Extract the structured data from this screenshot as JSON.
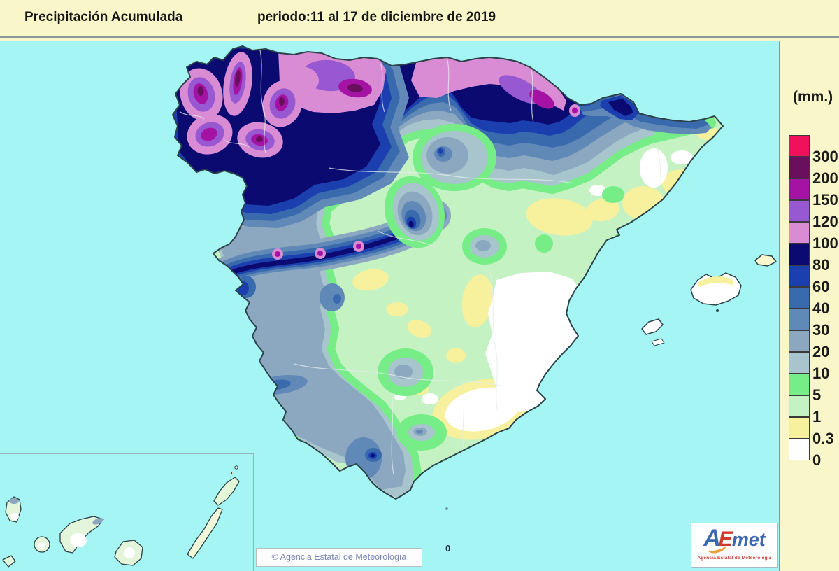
{
  "header": {
    "title": "Precipitación Acumulada",
    "period": "periodo:11 al 17 de diciembre de 2019"
  },
  "legend": {
    "unit": "(mm.)",
    "entries": [
      {
        "label": "300",
        "color": "#F0115C"
      },
      {
        "label": "200",
        "color": "#6A0F5E"
      },
      {
        "label": "150",
        "color": "#A513A5"
      },
      {
        "label": "120",
        "color": "#9758D2"
      },
      {
        "label": "100",
        "color": "#D98CD3"
      },
      {
        "label": "80",
        "color": "#0A0A70"
      },
      {
        "label": "60",
        "color": "#1C3FB0"
      },
      {
        "label": "40",
        "color": "#3A6AAE"
      },
      {
        "label": "30",
        "color": "#6189B8"
      },
      {
        "label": "20",
        "color": "#8CA8C0"
      },
      {
        "label": "10",
        "color": "#A8C4CC"
      },
      {
        "label": "5",
        "color": "#76ED86"
      },
      {
        "label": "1",
        "color": "#C4F2C2"
      },
      {
        "label": "0.3",
        "color": "#F7F09C"
      },
      {
        "label": "0",
        "color": "#FFFFFF"
      }
    ]
  },
  "map": {
    "zero_annotation": "0",
    "attribution": "© Agencia Estatal de Meteorología"
  },
  "logo": {
    "part_a": "A",
    "part_e": "E",
    "part_met": "met",
    "subtitle": "Agencia Estatal de Meteorología"
  },
  "colors": {
    "ocean": "#A5F5F5",
    "panel_bg": "#F9F6C9",
    "land_base": "#C4F2C2"
  }
}
